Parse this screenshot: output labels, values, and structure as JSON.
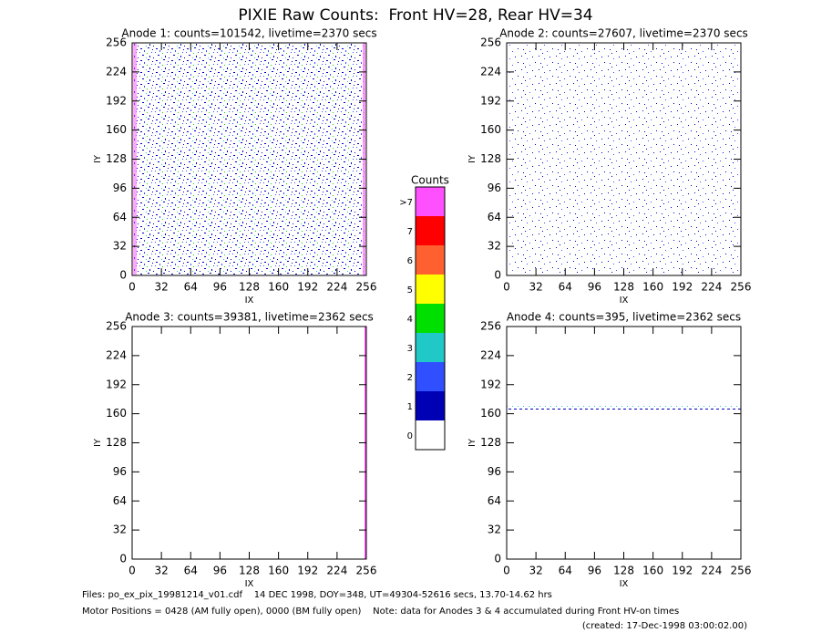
{
  "title": "PIXIE Raw Counts:  Front HV=28, Rear HV=34",
  "chart_data": [
    {
      "type": "heatmap",
      "title": "Anode 1: counts=101542, livetime=2370 secs",
      "xlabel": "IX",
      "ylabel": "IY",
      "xlim": [
        0,
        256
      ],
      "ylim": [
        0,
        256
      ],
      "xticks": [
        0,
        32,
        64,
        96,
        128,
        160,
        192,
        224,
        256
      ],
      "yticks": [
        0,
        32,
        64,
        96,
        128,
        160,
        192,
        224,
        256
      ]
    },
    {
      "type": "heatmap",
      "title": "Anode 2: counts=27607, livetime=2370 secs",
      "xlabel": "IX",
      "ylabel": "IY",
      "xlim": [
        0,
        256
      ],
      "ylim": [
        0,
        256
      ],
      "xticks": [
        0,
        32,
        64,
        96,
        128,
        160,
        192,
        224,
        256
      ],
      "yticks": [
        0,
        32,
        64,
        96,
        128,
        160,
        192,
        224,
        256
      ]
    },
    {
      "type": "heatmap",
      "title": "Anode 3: counts=39381, livetime=2362 secs",
      "xlabel": "IX",
      "ylabel": "IY",
      "xlim": [
        0,
        256
      ],
      "ylim": [
        0,
        256
      ],
      "xticks": [
        0,
        32,
        64,
        96,
        128,
        160,
        192,
        224,
        256
      ],
      "yticks": [
        0,
        32,
        64,
        96,
        128,
        160,
        192,
        224,
        256
      ]
    },
    {
      "type": "heatmap",
      "title": "Anode 4: counts=395, livetime=2362 secs",
      "xlabel": "IX",
      "ylabel": "IY",
      "xlim": [
        0,
        256
      ],
      "ylim": [
        0,
        256
      ],
      "xticks": [
        0,
        32,
        64,
        96,
        128,
        160,
        192,
        224,
        256
      ],
      "yticks": [
        0,
        32,
        64,
        96,
        128,
        160,
        192,
        224,
        256
      ]
    }
  ],
  "colorbar": {
    "title": "Counts",
    "labels": [
      "0",
      "1",
      "2",
      "3",
      "4",
      "5",
      "6",
      "7",
      ">7"
    ],
    "colors": [
      "#ffffff",
      "#0000b4",
      "#3050ff",
      "#20c8c8",
      "#00e000",
      "#ffff00",
      "#ff6030",
      "#ff0000",
      "#ff50ff"
    ]
  },
  "footer": {
    "files": "Files: po_ex_pix_19981214_v01.cdf    14 DEC 1998, DOY=348, UT=49304-52616 secs, 13.70-14.62 hrs",
    "motor": "Motor Positions = 0428 (AM fully open), 0000 (BM fully open)    Note: data for Anodes 3 & 4 accumulated during Front HV-on times",
    "created": "(created: 17-Dec-1998 03:00:02.00)"
  }
}
